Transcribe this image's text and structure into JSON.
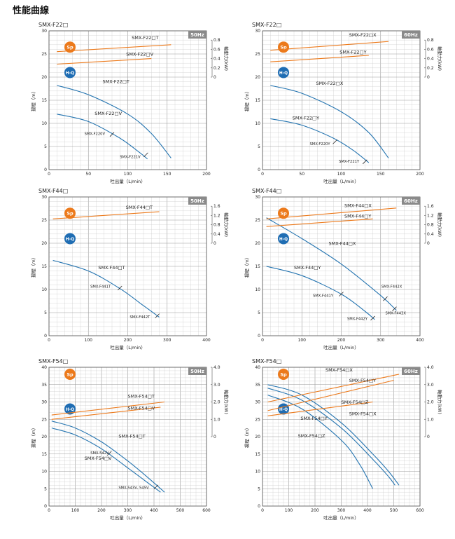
{
  "page_title": "性能曲線",
  "chart_data": [
    {
      "type": "line",
      "title": "SMX-F22□",
      "freq": "50Hz",
      "xlabel": "吐出量（L/min）",
      "ylabel": "揚程（m）",
      "y2label": "軸動力(kW)",
      "xlim": [
        0,
        200
      ],
      "xticks": [
        0,
        50,
        100,
        150,
        200
      ],
      "ylim": [
        0,
        30
      ],
      "yticks": [
        0,
        5,
        10,
        15,
        20,
        25,
        30
      ],
      "y2lim": [
        -2,
        1.0
      ],
      "y2ticks": [
        0,
        0.2,
        0.4,
        0.6,
        0.8
      ],
      "badges": {
        "sp": "Sp",
        "hq": "H-Q"
      },
      "series": [
        {
          "name": "SMX-F22□T",
          "kind": "hq",
          "x": [
            10,
            50,
            100,
            130,
            155
          ],
          "y": [
            18.2,
            16.2,
            12,
            7.8,
            2.5
          ],
          "label_at": [
            68,
            18.7
          ]
        },
        {
          "name": "SMX-F22□V",
          "kind": "hq",
          "x": [
            10,
            50,
            90,
            115,
            125
          ],
          "y": [
            12,
            10.4,
            6.8,
            3.7,
            2.3
          ],
          "label_at": [
            58,
            11.8
          ]
        },
        {
          "name": "SMX-F22□T",
          "kind": "sp",
          "x": [
            10,
            155
          ],
          "y": [
            0.55,
            0.7
          ],
          "label_at": [
            105,
            0.82
          ]
        },
        {
          "name": "SMX-F22□V",
          "kind": "sp",
          "x": [
            10,
            130
          ],
          "y": [
            0.28,
            0.4
          ],
          "label_at": [
            98,
            0.46
          ]
        }
      ],
      "markers": [
        {
          "label": "SMX-F220V",
          "x": 80,
          "y": 7.6,
          "label_at": [
            45,
            7.5
          ]
        },
        {
          "label": "SMX-F221V",
          "x": 123,
          "y": 3.2,
          "label_at": [
            90,
            2.5
          ]
        }
      ]
    },
    {
      "type": "line",
      "title": "SMX-F22□",
      "freq": "60Hz",
      "xlabel": "吐出量（L/min）",
      "ylabel": "揚程（m）",
      "y2label": "軸動力(kW)",
      "xlim": [
        0,
        200
      ],
      "xticks": [
        0,
        50,
        100,
        150,
        200
      ],
      "ylim": [
        0,
        30
      ],
      "yticks": [
        0,
        5,
        10,
        15,
        20,
        25,
        30
      ],
      "y2lim": [
        -2,
        1.0
      ],
      "y2ticks": [
        0,
        0.2,
        0.4,
        0.6,
        0.8
      ],
      "badges": {
        "sp": "Sp",
        "hq": "H-Q"
      },
      "series": [
        {
          "name": "SMX-F22□X",
          "kind": "hq",
          "x": [
            10,
            50,
            100,
            135,
            160
          ],
          "y": [
            18.2,
            16.5,
            12.5,
            8,
            2.5
          ],
          "label_at": [
            68,
            18.3
          ]
        },
        {
          "name": "SMX-F22□Y",
          "kind": "hq",
          "x": [
            10,
            50,
            90,
            115,
            135
          ],
          "y": [
            11,
            9.6,
            6.8,
            4.2,
            1.5
          ],
          "label_at": [
            38,
            10.8
          ]
        },
        {
          "name": "SMX-F22□X",
          "kind": "sp",
          "x": [
            10,
            160
          ],
          "y": [
            0.58,
            0.77
          ],
          "label_at": [
            110,
            0.88
          ]
        },
        {
          "name": "SMX-F22□Y",
          "kind": "sp",
          "x": [
            10,
            135
          ],
          "y": [
            0.33,
            0.47
          ],
          "label_at": [
            98,
            0.51
          ]
        }
      ],
      "markers": [
        {
          "label": "SMX-F220Y",
          "x": 92,
          "y": 6,
          "label_at": [
            60,
            5.3
          ]
        },
        {
          "label": "SMX-F221Y",
          "x": 130,
          "y": 1.7,
          "label_at": [
            97,
            1.5
          ]
        }
      ]
    },
    {
      "type": "line",
      "title": "SMX-F44□",
      "freq": "50Hz",
      "xlabel": "吐出量（L/min）",
      "ylabel": "揚程（m）",
      "y2label": "軸動力(kW)",
      "xlim": [
        0,
        400
      ],
      "xticks": [
        0,
        100,
        200,
        300,
        400
      ],
      "ylim": [
        0,
        30
      ],
      "yticks": [
        0,
        5,
        10,
        15,
        20,
        25,
        30
      ],
      "y2lim": [
        -4,
        2.0
      ],
      "y2ticks": [
        0,
        0.4,
        0.8,
        1.2,
        1.6
      ],
      "badges": {
        "sp": "Sp",
        "hq": "H-Q"
      },
      "series": [
        {
          "name": "SMX-F44□T",
          "kind": "hq",
          "x": [
            10,
            100,
            180,
            240,
            280
          ],
          "y": [
            16.3,
            14,
            10.2,
            6.5,
            4
          ],
          "label_at": [
            125,
            14.4
          ]
        },
        {
          "name": "SMX-F44□T",
          "kind": "sp",
          "x": [
            10,
            280
          ],
          "y": [
            1.05,
            1.36
          ],
          "label_at": [
            195,
            1.48
          ]
        }
      ],
      "markers": [
        {
          "label": "SMX-F441T",
          "x": 180,
          "y": 10.3,
          "label_at": [
            105,
            10.4
          ]
        },
        {
          "label": "SMX-F442T",
          "x": 275,
          "y": 4.3,
          "label_at": [
            205,
            3.8
          ]
        }
      ]
    },
    {
      "type": "line",
      "title": "SMX-F44□",
      "freq": "60Hz",
      "xlabel": "吐出量（L/min）",
      "ylabel": "揚程（m）",
      "y2label": "軸動力(kW)",
      "xlim": [
        0,
        400
      ],
      "xticks": [
        0,
        100,
        200,
        300,
        400
      ],
      "ylim": [
        0,
        30
      ],
      "yticks": [
        0,
        5,
        10,
        15,
        20,
        25,
        30
      ],
      "y2lim": [
        -4,
        2.0
      ],
      "y2ticks": [
        0,
        0.4,
        0.8,
        1.2,
        1.6
      ],
      "badges": {
        "sp": "Sp",
        "hq": "H-Q"
      },
      "series": [
        {
          "name": "SMX-F44□X",
          "kind": "hq",
          "x": [
            10,
            100,
            200,
            300,
            340
          ],
          "y": [
            25.5,
            21,
            15.5,
            8.7,
            5.5
          ],
          "label_at": [
            168,
            19.6
          ]
        },
        {
          "name": "SMX-F44□Y",
          "kind": "hq",
          "x": [
            10,
            100,
            200,
            260,
            285
          ],
          "y": [
            15,
            13,
            9,
            5.3,
            3.5
          ],
          "label_at": [
            80,
            14.4
          ]
        },
        {
          "name": "SMX-F44□X",
          "kind": "sp",
          "x": [
            10,
            340
          ],
          "y": [
            1.05,
            1.52
          ],
          "label_at": [
            208,
            1.56
          ]
        },
        {
          "name": "SMX-F44□Y",
          "kind": "sp",
          "x": [
            10,
            280
          ],
          "y": [
            0.72,
            1.05
          ],
          "label_at": [
            208,
            1.1
          ]
        }
      ],
      "markers": [
        {
          "label": "SMX-F441Y",
          "x": 200,
          "y": 9,
          "label_at": [
            128,
            8.4
          ]
        },
        {
          "label": "SMX-F442Y",
          "x": 280,
          "y": 3.8,
          "label_at": [
            215,
            3.4
          ]
        },
        {
          "label": "SMX-F442X",
          "x": 312,
          "y": 8,
          "label_at": [
            302,
            10.4
          ]
        },
        {
          "label": "SMX-F443X",
          "x": 335,
          "y": 5.8,
          "label_at": [
            312,
            4.6
          ]
        }
      ]
    },
    {
      "type": "line",
      "title": "SMX-F54□",
      "freq": "50Hz",
      "xlabel": "吐出量（L/min）",
      "ylabel": "揚程（m）",
      "y2label": "軸動力(kW)",
      "xlim": [
        0,
        600
      ],
      "xticks": [
        0,
        100,
        200,
        300,
        400,
        500,
        600
      ],
      "ylim": [
        0,
        40
      ],
      "yticks": [
        0,
        5,
        10,
        15,
        20,
        25,
        30,
        35,
        40
      ],
      "y2lim": [
        -4.0,
        4.0
      ],
      "y2ticks": [
        0,
        1.0,
        2.0,
        3.0,
        4.0
      ],
      "badges": {
        "sp": "Sp",
        "hq": "H-Q"
      },
      "series": [
        {
          "name": "SMX-F54□T",
          "kind": "hq",
          "x": [
            10,
            100,
            200,
            300,
            380,
            440
          ],
          "y": [
            24.5,
            22.5,
            18.5,
            13,
            8,
            4
          ],
          "label_at": [
            265,
            19.7
          ]
        },
        {
          "name": "SMX-F54□V",
          "kind": "hq",
          "x": [
            10,
            100,
            200,
            300,
            380,
            425
          ],
          "y": [
            22.5,
            20.5,
            16.5,
            11,
            6.5,
            4
          ],
          "label_at": [
            135,
            13.3
          ]
        },
        {
          "name": "SMX-F54□T",
          "kind": "sp",
          "x": [
            10,
            440
          ],
          "y": [
            1.25,
            2.0
          ],
          "label_at": [
            300,
            2.25
          ]
        },
        {
          "name": "SMX-F54□V",
          "kind": "sp",
          "x": [
            10,
            425
          ],
          "y": [
            1.0,
            1.7
          ],
          "label_at": [
            300,
            1.55
          ]
        }
      ],
      "markers": [
        {
          "label": "SMX-542V",
          "x": 230,
          "y": 15.2,
          "label_at": [
            158,
            15
          ]
        },
        {
          "label": "SMX-543V, 545V",
          "x": 408,
          "y": 5.5,
          "label_at": [
            265,
            5
          ]
        }
      ]
    },
    {
      "type": "line",
      "title": "SMX-F54□",
      "freq": "60Hz",
      "xlabel": "吐出量（L/min）",
      "ylabel": "揚程（m）",
      "y2label": "軸動力(kW)",
      "xlim": [
        0,
        600
      ],
      "xticks": [
        0,
        100,
        200,
        300,
        400,
        500,
        600
      ],
      "ylim": [
        0,
        40
      ],
      "yticks": [
        0,
        5,
        10,
        15,
        20,
        25,
        30,
        35,
        40
      ],
      "y2lim": [
        -4.0,
        4.0
      ],
      "y2ticks": [
        0,
        1.0,
        2.0,
        3.0,
        4.0
      ],
      "badges": {
        "sp": "Sp",
        "hq": "H-Q"
      },
      "series": [
        {
          "name": "SMX-F54□X",
          "kind": "hq",
          "x": [
            20,
            150,
            300,
            420,
            480,
            520
          ],
          "y": [
            35,
            32,
            24,
            15,
            10,
            6
          ],
          "label_at": [
            330,
            26.2
          ]
        },
        {
          "name": "SMX-F54□Y",
          "kind": "hq",
          "x": [
            20,
            150,
            300,
            420,
            480,
            505
          ],
          "y": [
            34,
            30.5,
            22.5,
            13.5,
            8.5,
            6
          ],
          "label_at": [
            145,
            24.8
          ]
        },
        {
          "name": "SMX-F54□Z",
          "kind": "hq",
          "x": [
            20,
            150,
            300,
            370,
            420
          ],
          "y": [
            32,
            28,
            19,
            12,
            5
          ],
          "label_at": [
            135,
            19.8
          ]
        },
        {
          "name": "SMX-F54□X",
          "kind": "sp",
          "x": [
            20,
            520
          ],
          "y": [
            2.0,
            3.6
          ],
          "label_at": [
            240,
            3.75
          ]
        },
        {
          "name": "SMX-F54□Y",
          "kind": "sp",
          "x": [
            20,
            500
          ],
          "y": [
            1.5,
            3.25
          ],
          "label_at": [
            330,
            3.15
          ]
        },
        {
          "name": "SMX-F54□Z",
          "kind": "sp",
          "x": [
            20,
            420
          ],
          "y": [
            1.2,
            2.0
          ],
          "label_at": [
            300,
            1.9
          ]
        }
      ],
      "markers": []
    }
  ],
  "colors": {
    "hq": "#2474b0",
    "sp": "#ec7a1c",
    "sp_badge": "#ec7a1c",
    "hq_badge": "#1f6db3",
    "grid": "#c8c8c8",
    "freq_bg": "#8a8a8a"
  }
}
